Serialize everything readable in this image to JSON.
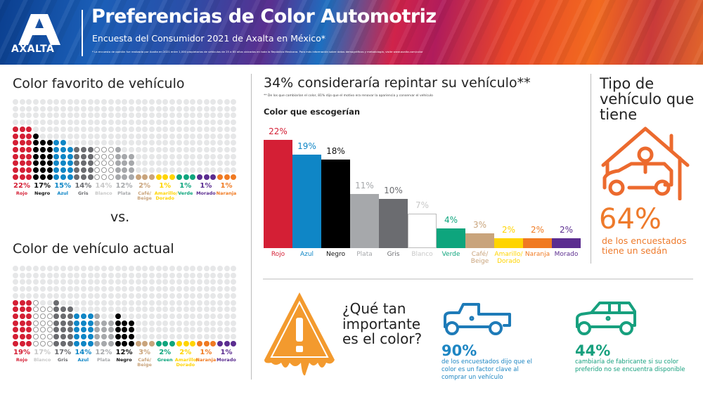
{
  "header": {
    "logo_text": "AXALTA",
    "title": "Preferencias de Color Automotriz",
    "subtitle": "Encuesta del Consumidor 2021 de Axalta en México*",
    "footnote": "* La encuesta de opinión fue realizada por Axalta en 2021 entre 1,000 propietarios de vehículos de 25 a 65 años ubicados en toda la República Mexicana. Para más información sobre datos demográficos y metodología, visite www.axalta.com/color"
  },
  "left": {
    "favorite_title": "Color favorito de vehículo",
    "vs": "vs.",
    "current_title": "Color de vehículo actual"
  },
  "middle": {
    "title": "34% consideraría repintar su vehículo**",
    "footnote": "** De los que cambiarían el color, 81% dijo que el motivo era renovar la apariencia y conservar el vehículo",
    "chart_title": "Color que escogerían"
  },
  "right": {
    "title": "Tipo de vehículo que tiene",
    "stat": "64%",
    "stat_desc": "de los encuestados tiene un sedán"
  },
  "bottom": {
    "question": "¿Qué tan importante es el color?",
    "stat1": "90%",
    "stat1_desc": "de los encuestados dijo que el color es un factor clave al comprar un vehículo",
    "stat2": "44%",
    "stat2_desc": "cambiaría de fabricante si su color preferido no se encuentra disponible"
  },
  "colors": {
    "Rojo": "#d41f35",
    "Negro": "#000000",
    "Azul": "#0f86c6",
    "Gris": "#6b6c70",
    "Blanco": "#ffffff",
    "Plata": "#a6a8ab",
    "Café/ Beige": "#c9a47c",
    "Amarillo/ Dorado": "#ffd400",
    "Verde": "#0ea57d",
    "Green": "#0ea57d",
    "Morado": "#5b2d90",
    "Naranja": "#f07a22",
    "empty": "#e6e7e8",
    "orange_accent": "#ee7a2b",
    "blue_accent": "#1e86c3",
    "green_accent": "#17a07e"
  },
  "chart_data": [
    {
      "type": "waffle",
      "title": "Color favorito de vehículo",
      "categories": [
        "Rojo",
        "Negro",
        "Azul",
        "Gris",
        "Blanco",
        "Plata",
        "Café/ Beige",
        "Amarillo/ Dorado",
        "Verde",
        "Morado",
        "Naranja"
      ],
      "labels": [
        "22%",
        "17%",
        "15%",
        "14%",
        "14%",
        "12%",
        "2%",
        "1%",
        "1%",
        "1%",
        "1%"
      ],
      "values": [
        22,
        17,
        15,
        14,
        14,
        12,
        2,
        1,
        1,
        1,
        1
      ]
    },
    {
      "type": "waffle",
      "title": "Color de vehículo actual",
      "categories": [
        "Rojo",
        "Blanco",
        "Gris",
        "Azul",
        "Plata",
        "Negro",
        "Café/ Beige",
        "Green",
        "Amarillo/ Dorado",
        "Naranja",
        "Morado"
      ],
      "labels": [
        "19%",
        "17%",
        "17%",
        "14%",
        "12%",
        "12%",
        "3%",
        "2%",
        "2%",
        "1%",
        "1%"
      ],
      "values": [
        19,
        17,
        17,
        14,
        12,
        12,
        3,
        2,
        2,
        1,
        1
      ]
    },
    {
      "type": "bar",
      "title": "Color que escogerían",
      "categories": [
        "Rojo",
        "Azul",
        "Negro",
        "Plata",
        "Gris",
        "Blanco",
        "Verde",
        "Café/ Beige",
        "Amarillo/ Dorado",
        "Naranja",
        "Morado"
      ],
      "labels": [
        "22%",
        "19%",
        "18%",
        "11%",
        "10%",
        "7%",
        "4%",
        "3%",
        "2%",
        "2%",
        "2%"
      ],
      "values": [
        22,
        19,
        18,
        11,
        10,
        7,
        4,
        3,
        2,
        2,
        2
      ],
      "ylim": [
        0,
        22
      ]
    }
  ]
}
